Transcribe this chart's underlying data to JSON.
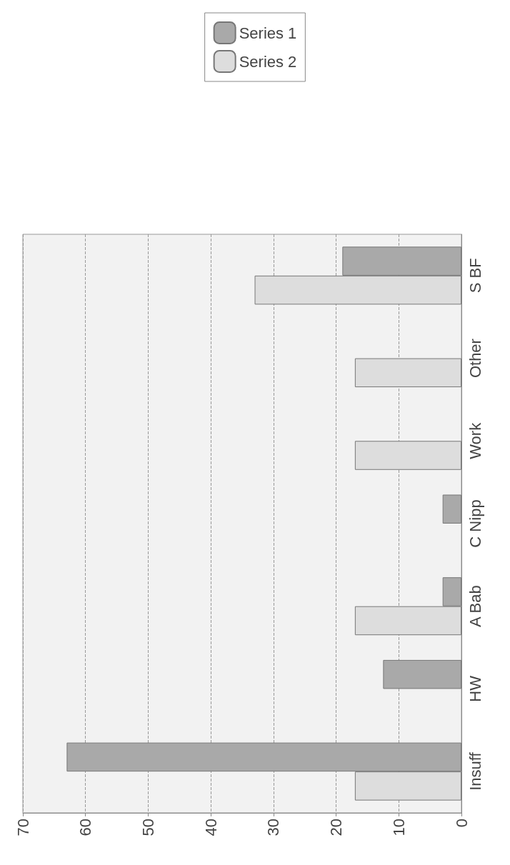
{
  "chart_data": {
    "type": "bar",
    "orientation": "horizontal",
    "categories": [
      "S BF",
      "Other",
      "Work",
      "C Nipp",
      "A Bab",
      "HW",
      "Insuff"
    ],
    "series": [
      {
        "name": "Series 1",
        "color": "#a9a9a9",
        "values": [
          19,
          null,
          null,
          3,
          3,
          12.5,
          63
        ]
      },
      {
        "name": "Series 2",
        "color": "#dddddd",
        "values": [
          33,
          17,
          17,
          null,
          17,
          null,
          17
        ]
      }
    ],
    "xlim": [
      70,
      0
    ],
    "xticks": [
      0,
      10,
      20,
      30,
      40,
      50,
      60,
      70
    ],
    "grid": "x",
    "legend": "top"
  }
}
